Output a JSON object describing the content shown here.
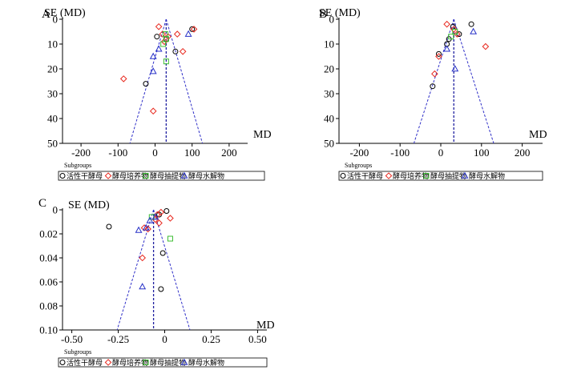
{
  "chart_data": [
    {
      "panel": "A",
      "type": "scatter",
      "subtype": "funnel",
      "xlabel": "MD",
      "ylabel": "SE (MD)",
      "xlim": [
        -250,
        250
      ],
      "ylim": [
        0,
        50
      ],
      "y_inverted": true,
      "x_ticks": [
        -200,
        -100,
        0,
        100,
        200
      ],
      "y_ticks": [
        0,
        10,
        20,
        30,
        40,
        50
      ],
      "pooled_md": 30,
      "legend_title": "Subgroups",
      "legend_position": "bottom",
      "series": [
        {
          "name": "活性干酵母",
          "marker": "circle",
          "color": "#000000",
          "points": [
            [
              5,
              7
            ],
            [
              30,
              8
            ],
            [
              100,
              4
            ],
            [
              55,
              13
            ],
            [
              -25,
              26
            ]
          ]
        },
        {
          "name": "酵母培养物",
          "marker": "diamond",
          "color": "#e8281e",
          "points": [
            [
              10,
              3
            ],
            [
              20,
              6
            ],
            [
              35,
              7
            ],
            [
              25,
              9
            ],
            [
              60,
              6
            ],
            [
              105,
              4
            ],
            [
              75,
              13
            ],
            [
              -85,
              24
            ],
            [
              -5,
              37
            ]
          ]
        },
        {
          "name": "酵母抽提物",
          "marker": "square",
          "color": "#3cbe32",
          "points": [
            [
              28,
              6
            ],
            [
              30,
              8
            ],
            [
              22,
              10
            ],
            [
              30,
              17
            ]
          ]
        },
        {
          "name": "酵母水解物",
          "marker": "triangle",
          "color": "#2832c8",
          "points": [
            [
              90,
              6
            ],
            [
              10,
              12
            ],
            [
              -5,
              15
            ],
            [
              -5,
              21
            ]
          ]
        }
      ]
    },
    {
      "panel": "B",
      "type": "scatter",
      "subtype": "funnel",
      "xlabel": "MD",
      "ylabel": "SE (MD)",
      "xlim": [
        -250,
        250
      ],
      "ylim": [
        0,
        50
      ],
      "y_inverted": true,
      "x_ticks": [
        -200,
        -100,
        0,
        100,
        200
      ],
      "y_ticks": [
        0,
        10,
        20,
        30,
        40,
        50
      ],
      "pooled_md": 32,
      "legend_title": "Subgroups",
      "legend_position": "bottom",
      "series": [
        {
          "name": "活性干酵母",
          "marker": "circle",
          "color": "#000000",
          "points": [
            [
              75,
              2
            ],
            [
              30,
              3
            ],
            [
              45,
              6
            ],
            [
              20,
              8
            ],
            [
              15,
              10
            ],
            [
              -5,
              14
            ],
            [
              -20,
              27
            ]
          ]
        },
        {
          "name": "酵母培养物",
          "marker": "diamond",
          "color": "#e8281e",
          "points": [
            [
              15,
              2
            ],
            [
              32,
              4
            ],
            [
              40,
              6
            ],
            [
              110,
              11
            ],
            [
              -15,
              22
            ],
            [
              -5,
              15
            ]
          ]
        },
        {
          "name": "酵母抽提物",
          "marker": "square",
          "color": "#3cbe32",
          "points": [
            [
              25,
              7
            ],
            [
              35,
              5
            ]
          ]
        },
        {
          "name": "酵母水解物",
          "marker": "triangle",
          "color": "#2832c8",
          "points": [
            [
              80,
              5
            ],
            [
              15,
              12
            ],
            [
              35,
              20
            ]
          ]
        }
      ]
    },
    {
      "panel": "C",
      "type": "scatter",
      "subtype": "funnel",
      "xlabel": "MD",
      "ylabel": "SE (MD)",
      "xlim": [
        -0.55,
        0.55
      ],
      "ylim": [
        0,
        0.1
      ],
      "y_inverted": true,
      "x_ticks": [
        -0.5,
        -0.25,
        0,
        0.25,
        0.5
      ],
      "x_tick_labels": [
        "-0.50",
        "-0.25",
        "0",
        "0.25",
        "0.50"
      ],
      "y_ticks": [
        0,
        0.02,
        0.04,
        0.06,
        0.08,
        0.1
      ],
      "y_tick_labels": [
        "0",
        "0.02",
        "0.04",
        "0.06",
        "0.08",
        "0.10"
      ],
      "pooled_md": -0.06,
      "legend_title": "Subgroups",
      "legend_position": "bottom",
      "series": [
        {
          "name": "活性干酵母",
          "marker": "circle",
          "color": "#000000",
          "points": [
            [
              0.01,
              0.001
            ],
            [
              -0.03,
              0.004
            ],
            [
              -0.3,
              0.014
            ],
            [
              -0.01,
              0.036
            ],
            [
              -0.02,
              0.066
            ]
          ]
        },
        {
          "name": "酵母培养物",
          "marker": "diamond",
          "color": "#e8281e",
          "points": [
            [
              -0.02,
              0.002
            ],
            [
              -0.04,
              0.004
            ],
            [
              0.03,
              0.007
            ],
            [
              -0.05,
              0.008
            ],
            [
              -0.03,
              0.011
            ],
            [
              -0.11,
              0.015
            ],
            [
              -0.09,
              0.016
            ],
            [
              -0.12,
              0.04
            ]
          ]
        },
        {
          "name": "酵母抽提物",
          "marker": "square",
          "color": "#3cbe32",
          "points": [
            [
              -0.07,
              0.006
            ],
            [
              0.03,
              0.024
            ]
          ]
        },
        {
          "name": "酵母水解物",
          "marker": "triangle",
          "color": "#2832c8",
          "points": [
            [
              -0.05,
              0.006
            ],
            [
              -0.08,
              0.009
            ],
            [
              -0.1,
              0.015
            ],
            [
              -0.14,
              0.017
            ],
            [
              -0.12,
              0.064
            ]
          ]
        }
      ]
    }
  ]
}
